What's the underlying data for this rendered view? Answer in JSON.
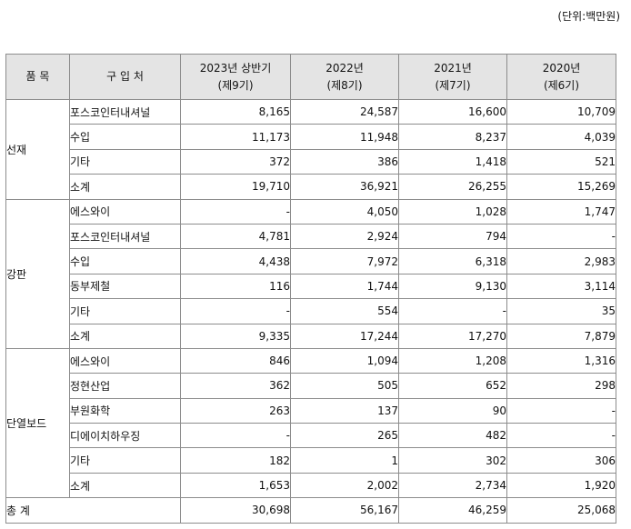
{
  "unit_note": "(단위:백만원)",
  "header": {
    "category": "품 목",
    "supplier": "구 입 처",
    "periods": [
      {
        "year": "2023년 상반기",
        "term": "(제9기)"
      },
      {
        "year": "2022년",
        "term": "(제8기)"
      },
      {
        "year": "2021년",
        "term": "(제7기)"
      },
      {
        "year": "2020년",
        "term": "(제6기)"
      }
    ]
  },
  "groups": [
    {
      "name": "선재",
      "rows": [
        {
          "supplier": "포스코인터내셔널",
          "values": [
            "8,165",
            "24,587",
            "16,600",
            "10,709"
          ]
        },
        {
          "supplier": "수입",
          "values": [
            "11,173",
            "11,948",
            "8,237",
            "4,039"
          ]
        },
        {
          "supplier": "기타",
          "values": [
            "372",
            "386",
            "1,418",
            "521"
          ]
        },
        {
          "supplier": "소계",
          "values": [
            "19,710",
            "36,921",
            "26,255",
            "15,269"
          ]
        }
      ]
    },
    {
      "name": "강판",
      "rows": [
        {
          "supplier": "에스와이",
          "values": [
            "-",
            "4,050",
            "1,028",
            "1,747"
          ]
        },
        {
          "supplier": "포스코인터내셔널",
          "values": [
            "4,781",
            "2,924",
            "794",
            "-"
          ]
        },
        {
          "supplier": "수입",
          "values": [
            "4,438",
            "7,972",
            "6,318",
            "2,983"
          ]
        },
        {
          "supplier": "동부제철",
          "values": [
            "116",
            "1,744",
            "9,130",
            "3,114"
          ]
        },
        {
          "supplier": "기타",
          "values": [
            "-",
            "554",
            "-",
            "35"
          ]
        },
        {
          "supplier": "소계",
          "values": [
            "9,335",
            "17,244",
            "17,270",
            "7,879"
          ]
        }
      ]
    },
    {
      "name": "단열보드",
      "rows": [
        {
          "supplier": "에스와이",
          "values": [
            "846",
            "1,094",
            "1,208",
            "1,316"
          ]
        },
        {
          "supplier": "정현산업",
          "values": [
            "362",
            "505",
            "652",
            "298"
          ]
        },
        {
          "supplier": "부원화학",
          "values": [
            "263",
            "137",
            "90",
            "-"
          ]
        },
        {
          "supplier": "디에이치하우징",
          "values": [
            "-",
            "265",
            "482",
            "-"
          ]
        },
        {
          "supplier": "기타",
          "values": [
            "182",
            "1",
            "302",
            "306"
          ]
        },
        {
          "supplier": "소계",
          "values": [
            "1,653",
            "2,002",
            "2,734",
            "1,920"
          ]
        }
      ]
    }
  ],
  "total": {
    "label": "총 계",
    "values": [
      "30,698",
      "56,167",
      "46,259",
      "25,068"
    ]
  }
}
